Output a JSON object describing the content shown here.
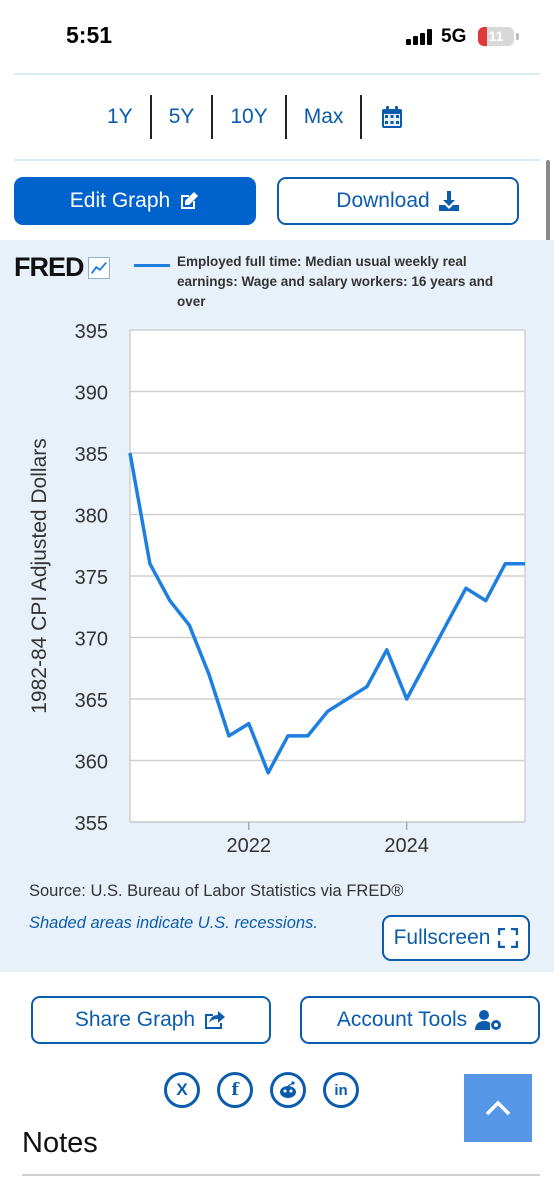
{
  "status_bar": {
    "time": "5:51",
    "network": "5G",
    "battery": "11"
  },
  "range_tabs": [
    "1Y",
    "5Y",
    "10Y",
    "Max"
  ],
  "icons": {
    "calendar": "calendar-icon",
    "edit": "pencil-square-icon",
    "download": "download-icon",
    "fullscreen": "expand-icon",
    "share": "share-icon",
    "account": "user-gear-icon",
    "scroll_top": "chevron-up-icon"
  },
  "buttons": {
    "edit_graph": "Edit Graph",
    "download": "Download",
    "fullscreen": "Fullscreen",
    "share_graph": "Share Graph",
    "account_tools": "Account Tools"
  },
  "graph": {
    "logo": "FRED",
    "source": "Source: U.S. Bureau of Labor Statistics via FRED®",
    "shaded_note": "Shaded areas indicate U.S. recessions."
  },
  "social": [
    "X",
    "f",
    "reddit",
    "in"
  ],
  "notes_title": "Notes",
  "colors": {
    "accent": "#0062cc",
    "link": "#0b5cad",
    "series": "#1f7fe0",
    "panel_bg": "#e8f1f9"
  },
  "chart_data": {
    "type": "line",
    "title": "",
    "series": [
      {
        "name": "Employed full time: Median usual weekly real earnings: Wage and salary workers: 16 years and over",
        "x": [
          "2020-07-01",
          "2020-10-01",
          "2021-01-01",
          "2021-04-01",
          "2021-07-01",
          "2021-10-01",
          "2022-01-01",
          "2022-04-01",
          "2022-07-01",
          "2022-10-01",
          "2023-01-01",
          "2023-04-01",
          "2023-07-01",
          "2023-10-01",
          "2024-01-01",
          "2024-04-01",
          "2024-07-01",
          "2024-10-01",
          "2025-01-01",
          "2025-04-01",
          "2025-07-01"
        ],
        "values": [
          385,
          376,
          373,
          371,
          367,
          362,
          363,
          359,
          362,
          362,
          364,
          365,
          366,
          369,
          365,
          368,
          371,
          374,
          373,
          376,
          376
        ]
      }
    ],
    "xlabel": "",
    "ylabel": "1982-84 CPI Adjusted Dollars",
    "x_ticks": [
      "2022",
      "2024"
    ],
    "y_ticks": [
      355,
      360,
      365,
      370,
      375,
      380,
      385,
      390,
      395
    ],
    "xlim": [
      "2020-07-01",
      "2025-07-01"
    ],
    "ylim": [
      355,
      395
    ],
    "grid": true,
    "legend_position": "top"
  }
}
